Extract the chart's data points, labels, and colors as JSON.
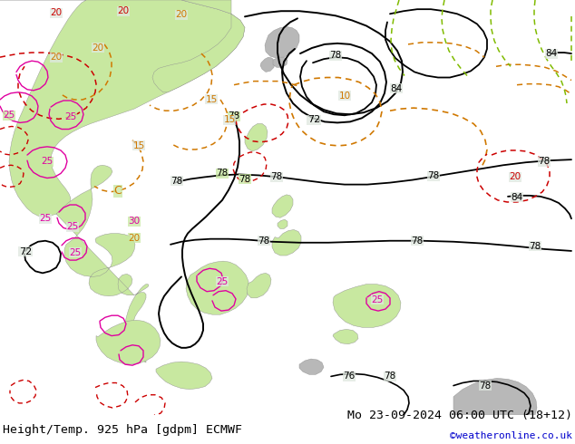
{
  "title_left": "Height/Temp. 925 hPa [gdpm] ECMWF",
  "title_right": "Mo 23-09-2024 06:00 UTC (18+12)",
  "title_right2": "©weatheronline.co.uk",
  "ocean_color": "#e0e8e0",
  "land_green_color": "#c8e8a0",
  "land_gray_color": "#b8b8b8",
  "contour_black_color": "#000000",
  "contour_orange_color": "#d07800",
  "contour_red_color": "#cc0000",
  "contour_magenta_color": "#e000a0",
  "contour_green_color": "#80bb00",
  "font_size_title": 9.5,
  "font_size_label": 8
}
